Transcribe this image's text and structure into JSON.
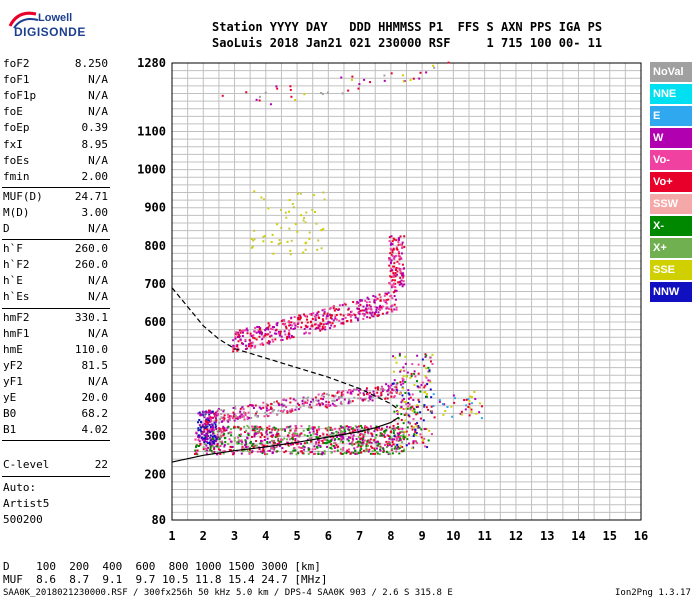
{
  "logo": {
    "line1": "Lowell",
    "line2": "DIGISONDE"
  },
  "header": {
    "line1": "Station YYYY DAY   DDD HHMMSS P1  FFS S AXN PPS IGA PS",
    "line2": "SaoLuis 2018 Jan21 021 230000 RSF     1 715 100 00- 11"
  },
  "params": [
    {
      "name": "foF2",
      "value": "8.250"
    },
    {
      "name": "foF1",
      "value": "N/A"
    },
    {
      "name": "foF1p",
      "value": "N/A"
    },
    {
      "name": "foE",
      "value": "N/A"
    },
    {
      "name": "foEp",
      "value": "0.39"
    },
    {
      "name": "fxI",
      "value": "8.95"
    },
    {
      "name": "foEs",
      "value": "N/A"
    },
    {
      "name": "fmin",
      "value": "2.00"
    },
    {
      "name": "MUF(D)",
      "value": "24.71"
    },
    {
      "name": "M(D)",
      "value": "3.00"
    },
    {
      "name": "D",
      "value": "N/A"
    },
    {
      "name": "h`F",
      "value": "260.0"
    },
    {
      "name": "h`F2",
      "value": "260.0"
    },
    {
      "name": "h`E",
      "value": "N/A"
    },
    {
      "name": "h`Es",
      "value": "N/A"
    },
    {
      "name": "hmF2",
      "value": "330.1"
    },
    {
      "name": "hmF1",
      "value": "N/A"
    },
    {
      "name": "hmE",
      "value": "110.0"
    },
    {
      "name": "yF2",
      "value": "81.5"
    },
    {
      "name": "yF1",
      "value": "N/A"
    },
    {
      "name": "yE",
      "value": "20.0"
    },
    {
      "name": "B0",
      "value": "68.2"
    },
    {
      "name": "B1",
      "value": "4.02"
    }
  ],
  "clevel": {
    "name": "C-level",
    "value": "22"
  },
  "autoscale": {
    "line1": "Auto:",
    "line2": "Artist5",
    "line3": "500200"
  },
  "legend": [
    {
      "label": "NoVal",
      "color": "#a0a0a0"
    },
    {
      "label": "NNE",
      "color": "#00e0f0"
    },
    {
      "label": "E",
      "color": "#30a8f0"
    },
    {
      "label": "W",
      "color": "#b000b0"
    },
    {
      "label": "Vo-",
      "color": "#f040a0"
    },
    {
      "label": "Vo+",
      "color": "#e8002a"
    },
    {
      "label": "SSW",
      "color": "#f4a8a8"
    },
    {
      "label": "X-",
      "color": "#008800"
    },
    {
      "label": "X+",
      "color": "#70b050"
    },
    {
      "label": "SSE",
      "color": "#d0d000"
    },
    {
      "label": "NNW",
      "color": "#1010c0"
    }
  ],
  "muf_table": {
    "d_label": "D",
    "d_values": "100  200  400  600  800 1000 1500 3000 [km]",
    "muf_label": "MUF",
    "muf_values": "8.6  8.7  9.1  9.7 10.5 11.8 15.4 24.7 [MHz]"
  },
  "footer": {
    "left": "SAA0K_2018021230000.RSF / 300fx256h 50 kHz 5.0 km / DPS-4 SAA0K 903 / 2.6 S 315.8 E",
    "right": "Ion2Png 1.3.17"
  },
  "chart_data": {
    "type": "scatter",
    "title": "",
    "xlabel": "",
    "ylabel": "",
    "xlim": [
      1,
      16
    ],
    "ylim": [
      80,
      1280
    ],
    "x_ticks": [
      1,
      2,
      3,
      4,
      5,
      6,
      7,
      8,
      9,
      10,
      11,
      12,
      13,
      14,
      15,
      16
    ],
    "y_ticks": [
      80,
      200,
      300,
      400,
      500,
      600,
      700,
      800,
      900,
      1000,
      1100,
      1280
    ],
    "grid": true,
    "legend_placement": "right",
    "series": [
      {
        "kind": "line",
        "style": "solid",
        "x": [
          1.0,
          2.0,
          3.0,
          4.0,
          5.0,
          6.0,
          7.0,
          7.5,
          8.0,
          8.25
        ],
        "y": [
          232,
          250,
          262,
          272,
          284,
          298,
          312,
          322,
          336,
          350
        ]
      },
      {
        "kind": "line",
        "style": "dashed",
        "x": [
          1.0,
          1.5,
          2.0,
          2.5,
          3.0,
          4.0,
          5.0,
          6.0,
          7.0,
          8.0,
          8.25
        ],
        "y": [
          690,
          640,
          590,
          555,
          530,
          505,
          480,
          455,
          425,
          385,
          370
        ]
      }
    ],
    "echo_regions": [
      {
        "x": [
          1.7,
          8.4
        ],
        "y": [
          255,
          330
        ],
        "density": 900,
        "colors": [
          "#e8002a",
          "#f040a0",
          "#008800",
          "#70b050",
          "#b000b0"
        ]
      },
      {
        "x": [
          1.8,
          2.4
        ],
        "y": [
          280,
          370
        ],
        "density": 120,
        "colors": [
          "#1010c0",
          "#b000b0"
        ]
      },
      {
        "x": [
          2.0,
          8.3
        ],
        "y": [
          330,
          440
        ],
        "density": 350,
        "colors": [
          "#b000b0",
          "#f040a0",
          "#e8002a",
          "#a0a0a0"
        ]
      },
      {
        "x": [
          2.9,
          8.2
        ],
        "y": [
          520,
          680
        ],
        "density": 450,
        "colors": [
          "#b000b0",
          "#f040a0",
          "#e8002a"
        ]
      },
      {
        "x": [
          7.9,
          8.4
        ],
        "y": [
          690,
          830
        ],
        "density": 120,
        "colors": [
          "#f040a0",
          "#e8002a",
          "#b000b0"
        ]
      },
      {
        "x": [
          3.5,
          6.0
        ],
        "y": [
          780,
          950
        ],
        "density": 60,
        "colors": [
          "#d0d000",
          "#c8c840"
        ]
      },
      {
        "x": [
          8.0,
          9.3
        ],
        "y": [
          270,
          520
        ],
        "density": 220,
        "colors": [
          "#1010c0",
          "#008800",
          "#b000b0",
          "#f040a0",
          "#e8002a",
          "#d0d000"
        ]
      },
      {
        "x": [
          9.3,
          10.9
        ],
        "y": [
          350,
          420
        ],
        "density": 40,
        "colors": [
          "#e8002a",
          "#b000b0",
          "#d0d000",
          "#30a8f0"
        ]
      },
      {
        "x": [
          2.0,
          10.0
        ],
        "y": [
          1150,
          1280
        ],
        "density": 40,
        "colors": [
          "#d0d000",
          "#b000b0",
          "#a0a0a0",
          "#e8002a"
        ]
      }
    ]
  }
}
